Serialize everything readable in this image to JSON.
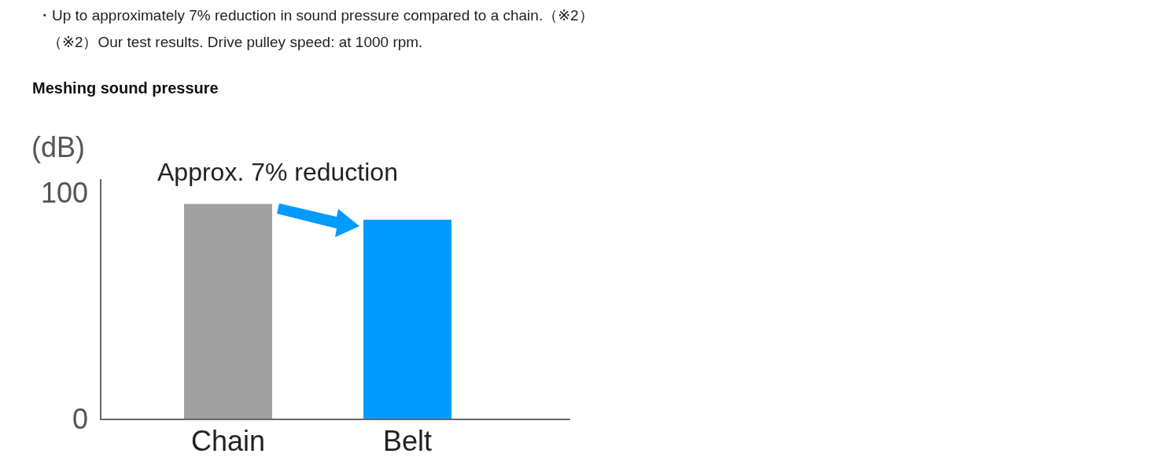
{
  "chart_data": {
    "type": "bar",
    "title": "Meshing sound pressure",
    "ylabel": "(dB)",
    "categories": [
      "Chain",
      "Belt"
    ],
    "values": [
      95,
      88
    ],
    "colors": [
      "#a0a0a0",
      "#009bff"
    ],
    "ylim": [
      0,
      106
    ],
    "yticks": [
      0,
      100
    ],
    "annotations": [
      "・Up to approximately 7% reduction in sound pressure compared to a chain.（※2）",
      "（※2）Our test results. Drive pulley speed: at 1000 rpm.",
      "Approx. 7% reduction"
    ]
  }
}
